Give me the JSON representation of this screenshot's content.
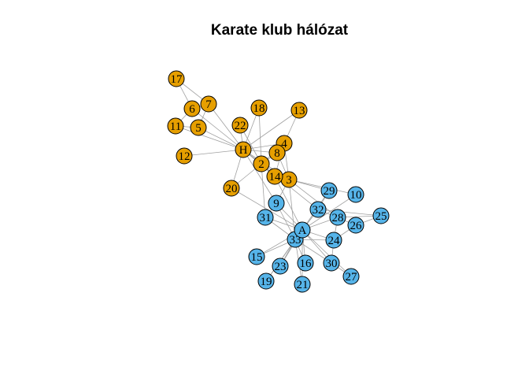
{
  "title": "Karate klub hálózat",
  "colors": {
    "group1": "#e69f00",
    "group2": "#56b4e9",
    "edge": "#a0a0a0"
  },
  "nodes": [
    {
      "id": "H",
      "label": "H",
      "group": 1
    },
    {
      "id": "2",
      "label": "2",
      "group": 1
    },
    {
      "id": "3",
      "label": "3",
      "group": 1
    },
    {
      "id": "4",
      "label": "4",
      "group": 1
    },
    {
      "id": "5",
      "label": "5",
      "group": 1
    },
    {
      "id": "6",
      "label": "6",
      "group": 1
    },
    {
      "id": "7",
      "label": "7",
      "group": 1
    },
    {
      "id": "8",
      "label": "8",
      "group": 1
    },
    {
      "id": "9",
      "label": "9",
      "group": 2
    },
    {
      "id": "10",
      "label": "10",
      "group": 2
    },
    {
      "id": "11",
      "label": "11",
      "group": 1
    },
    {
      "id": "12",
      "label": "12",
      "group": 1
    },
    {
      "id": "13",
      "label": "13",
      "group": 1
    },
    {
      "id": "14",
      "label": "14",
      "group": 1
    },
    {
      "id": "15",
      "label": "15",
      "group": 2
    },
    {
      "id": "16",
      "label": "16",
      "group": 2
    },
    {
      "id": "17",
      "label": "17",
      "group": 1
    },
    {
      "id": "18",
      "label": "18",
      "group": 1
    },
    {
      "id": "19",
      "label": "19",
      "group": 2
    },
    {
      "id": "20",
      "label": "20",
      "group": 1
    },
    {
      "id": "21",
      "label": "21",
      "group": 2
    },
    {
      "id": "22",
      "label": "22",
      "group": 1
    },
    {
      "id": "23",
      "label": "23",
      "group": 2
    },
    {
      "id": "24",
      "label": "24",
      "group": 2
    },
    {
      "id": "25",
      "label": "25",
      "group": 2
    },
    {
      "id": "26",
      "label": "26",
      "group": 2
    },
    {
      "id": "27",
      "label": "27",
      "group": 2
    },
    {
      "id": "28",
      "label": "28",
      "group": 2
    },
    {
      "id": "29",
      "label": "29",
      "group": 2
    },
    {
      "id": "30",
      "label": "30",
      "group": 2
    },
    {
      "id": "31",
      "label": "31",
      "group": 2
    },
    {
      "id": "32",
      "label": "32",
      "group": 2
    },
    {
      "id": "33",
      "label": "33",
      "group": 2
    },
    {
      "id": "A",
      "label": "A",
      "group": 2
    }
  ],
  "edges": [
    [
      "H",
      "2"
    ],
    [
      "H",
      "3"
    ],
    [
      "H",
      "4"
    ],
    [
      "H",
      "5"
    ],
    [
      "H",
      "6"
    ],
    [
      "H",
      "7"
    ],
    [
      "H",
      "8"
    ],
    [
      "H",
      "9"
    ],
    [
      "H",
      "11"
    ],
    [
      "H",
      "12"
    ],
    [
      "H",
      "13"
    ],
    [
      "H",
      "14"
    ],
    [
      "H",
      "18"
    ],
    [
      "H",
      "20"
    ],
    [
      "H",
      "22"
    ],
    [
      "H",
      "32"
    ],
    [
      "2",
      "3"
    ],
    [
      "2",
      "4"
    ],
    [
      "2",
      "8"
    ],
    [
      "2",
      "14"
    ],
    [
      "2",
      "18"
    ],
    [
      "2",
      "20"
    ],
    [
      "2",
      "22"
    ],
    [
      "2",
      "31"
    ],
    [
      "3",
      "4"
    ],
    [
      "3",
      "8"
    ],
    [
      "3",
      "9"
    ],
    [
      "3",
      "10"
    ],
    [
      "3",
      "14"
    ],
    [
      "3",
      "28"
    ],
    [
      "3",
      "29"
    ],
    [
      "3",
      "33"
    ],
    [
      "4",
      "8"
    ],
    [
      "4",
      "13"
    ],
    [
      "4",
      "14"
    ],
    [
      "5",
      "7"
    ],
    [
      "5",
      "11"
    ],
    [
      "6",
      "7"
    ],
    [
      "6",
      "11"
    ],
    [
      "6",
      "17"
    ],
    [
      "7",
      "17"
    ],
    [
      "9",
      "31"
    ],
    [
      "9",
      "33"
    ],
    [
      "9",
      "A"
    ],
    [
      "10",
      "A"
    ],
    [
      "14",
      "A"
    ],
    [
      "15",
      "33"
    ],
    [
      "15",
      "A"
    ],
    [
      "16",
      "33"
    ],
    [
      "16",
      "A"
    ],
    [
      "19",
      "33"
    ],
    [
      "19",
      "A"
    ],
    [
      "20",
      "A"
    ],
    [
      "21",
      "33"
    ],
    [
      "21",
      "A"
    ],
    [
      "23",
      "33"
    ],
    [
      "23",
      "A"
    ],
    [
      "24",
      "26"
    ],
    [
      "24",
      "28"
    ],
    [
      "24",
      "30"
    ],
    [
      "24",
      "33"
    ],
    [
      "24",
      "A"
    ],
    [
      "25",
      "26"
    ],
    [
      "25",
      "28"
    ],
    [
      "25",
      "32"
    ],
    [
      "26",
      "32"
    ],
    [
      "27",
      "30"
    ],
    [
      "27",
      "A"
    ],
    [
      "28",
      "A"
    ],
    [
      "29",
      "32"
    ],
    [
      "29",
      "A"
    ],
    [
      "30",
      "33"
    ],
    [
      "30",
      "A"
    ],
    [
      "31",
      "33"
    ],
    [
      "31",
      "A"
    ],
    [
      "32",
      "33"
    ],
    [
      "32",
      "A"
    ],
    [
      "33",
      "A"
    ]
  ]
}
